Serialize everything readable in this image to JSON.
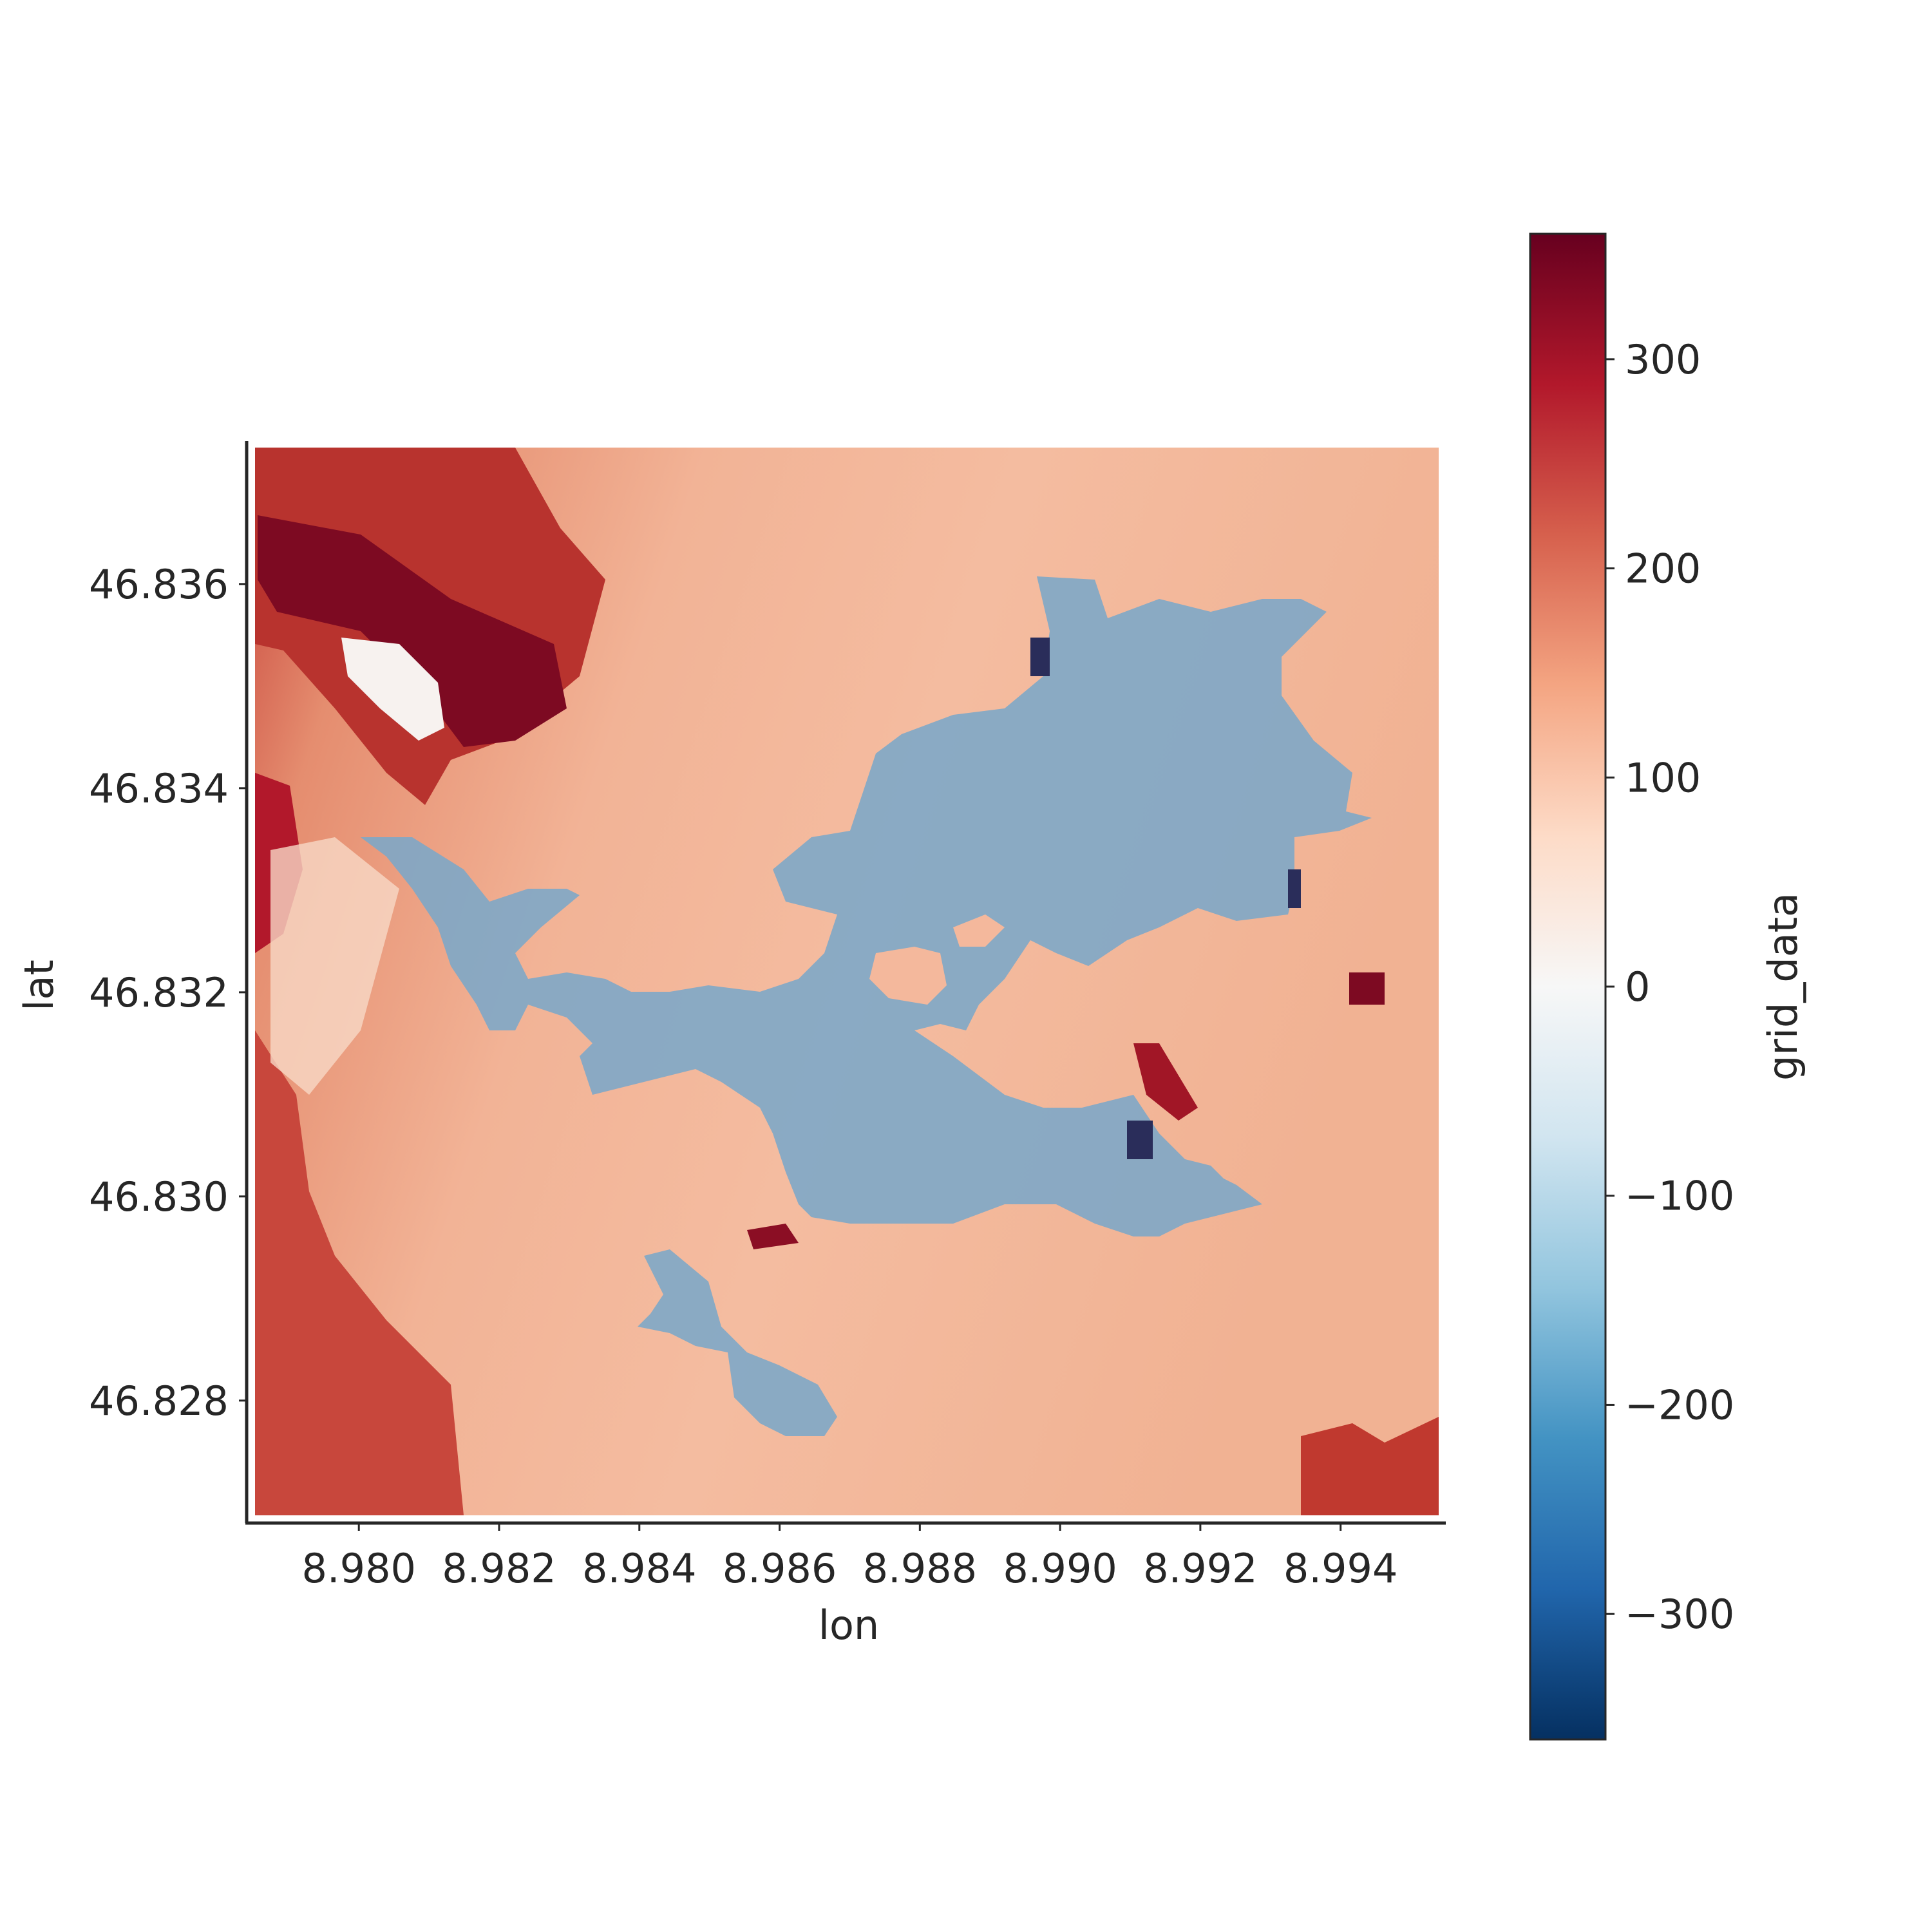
{
  "chart_data": {
    "type": "heatmap",
    "xlabel": "lon",
    "ylabel": "lat",
    "xlim": [
      8.9784,
      8.9955
    ],
    "ylim": [
      46.8268,
      46.8374
    ],
    "x_ticks": [
      8.98,
      8.982,
      8.984,
      8.986,
      8.988,
      8.99,
      8.992,
      8.994
    ],
    "x_tick_labels": [
      "8.980",
      "8.982",
      "8.984",
      "8.986",
      "8.988",
      "8.990",
      "8.992",
      "8.994"
    ],
    "y_ticks": [
      46.828,
      46.83,
      46.832,
      46.834,
      46.836
    ],
    "y_tick_labels": [
      "46.828",
      "46.830",
      "46.832",
      "46.834",
      "46.836"
    ],
    "colorbar": {
      "label": "grid_data",
      "colormap": "RdBu_r",
      "vmin": -360,
      "vmax": 360,
      "ticks": [
        -300,
        -200,
        -100,
        0,
        100,
        200,
        300
      ],
      "tick_labels": [
        "−300",
        "−200",
        "−100",
        "0",
        "100",
        "200",
        "300"
      ]
    },
    "overlay": {
      "description": "glacier outline",
      "color": "#7ba7c8",
      "opacity": 0.85
    },
    "grid": false,
    "colors": {
      "low": "#053061",
      "mid": "#f7f7f7",
      "high": "#67001f",
      "overlay": "#7ba7c8"
    }
  }
}
